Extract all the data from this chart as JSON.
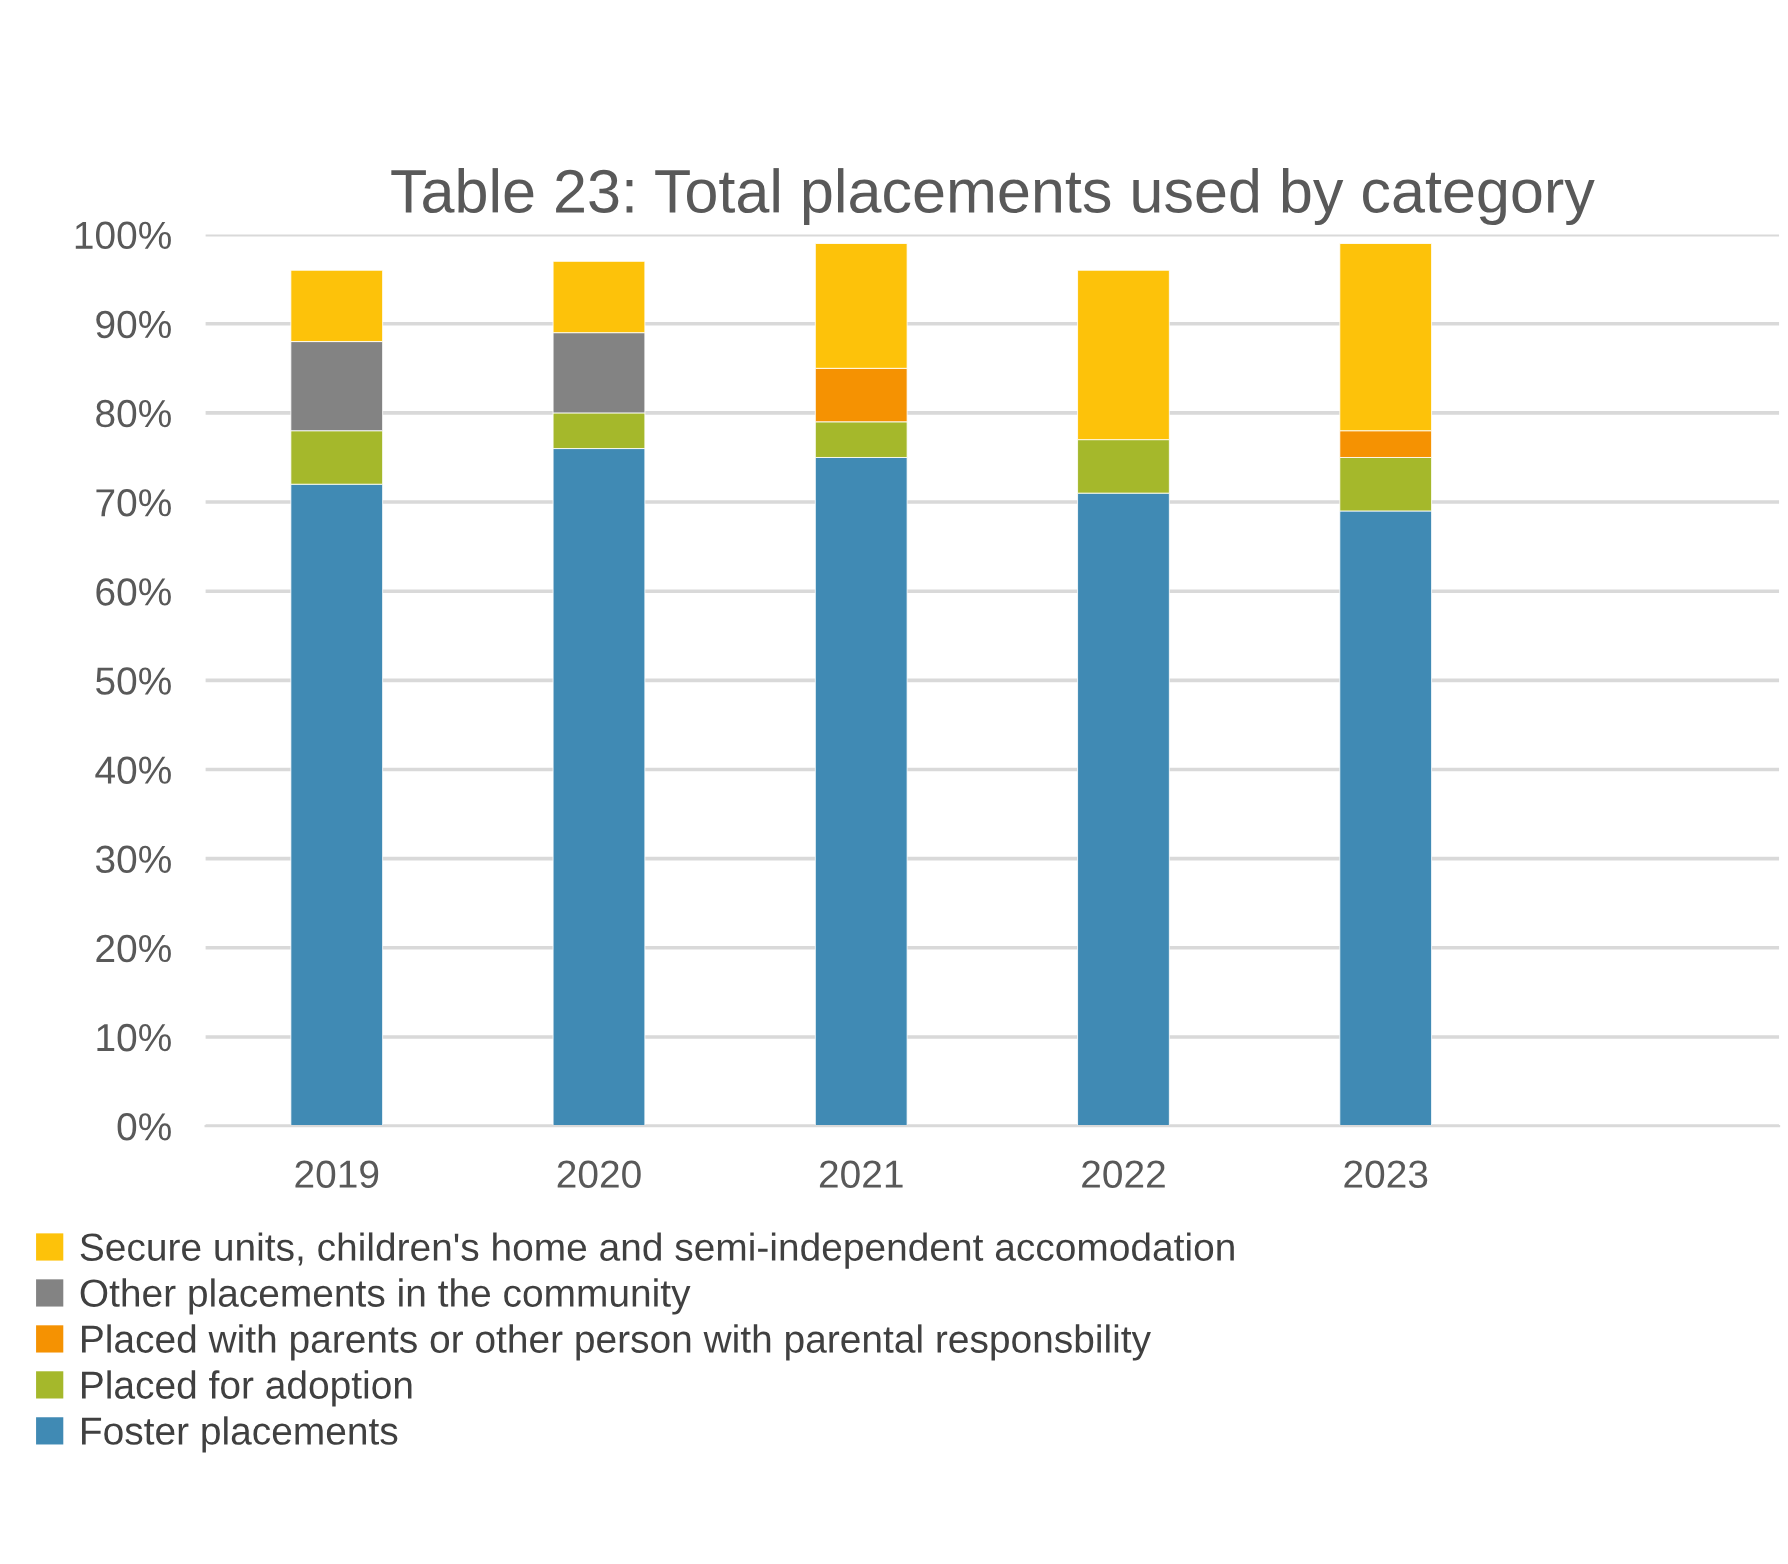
{
  "chart_data": {
    "type": "bar",
    "title": "Table 23: Total placements used by category",
    "stacked": true,
    "categories": [
      "2019",
      "2020",
      "2021",
      "2022",
      "2023",
      null
    ],
    "series": [
      {
        "name": "Foster placements",
        "color": "#408ab4",
        "values": [
          72,
          76,
          75,
          71,
          69,
          null
        ]
      },
      {
        "name": "Placed for adoption",
        "color": "#a5b82b",
        "values": [
          6,
          4,
          4,
          6,
          6,
          null
        ]
      },
      {
        "name": "Placed with parents or other person with parental responsbility",
        "color": "#f59202",
        "values": [
          null,
          null,
          6,
          null,
          3,
          null
        ]
      },
      {
        "name": "Other placements in the community",
        "color": "#838383",
        "values": [
          10,
          9,
          null,
          null,
          null,
          null
        ]
      },
      {
        "name": "Secure units, children's home and semi-independent accomodation",
        "color": "#fdc20a",
        "values": [
          8,
          8,
          14,
          19,
          21,
          null
        ]
      }
    ],
    "ylim": [
      0,
      100
    ],
    "yticks": [
      {
        "value": 0,
        "label": "0%"
      },
      {
        "value": 10,
        "label": "10%"
      },
      {
        "value": 20,
        "label": "20%"
      },
      {
        "value": 30,
        "label": "30%"
      },
      {
        "value": 40,
        "label": "40%"
      },
      {
        "value": 50,
        "label": "50%"
      },
      {
        "value": 60,
        "label": "60%"
      },
      {
        "value": 70,
        "label": "70%"
      },
      {
        "value": 80,
        "label": "80%"
      },
      {
        "value": 90,
        "label": "90%"
      },
      {
        "value": 100,
        "label": "100%"
      }
    ],
    "grid": "y",
    "legend": "bottom"
  }
}
